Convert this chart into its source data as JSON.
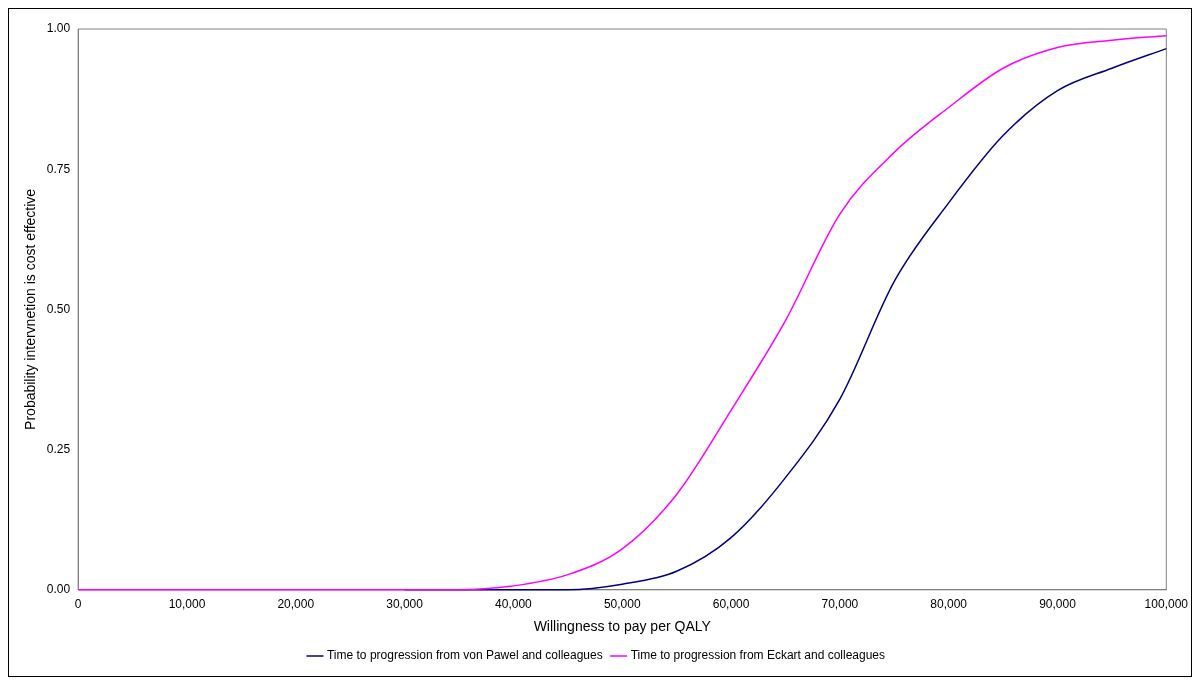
{
  "chart_data": {
    "type": "line",
    "xlabel": "Willingness to pay per QALY",
    "ylabel": "Probability intervnetion is cost effective",
    "xlim": [
      0,
      100000
    ],
    "xticks": [
      0,
      {
        "value": 10000,
        "label": "10,000"
      },
      {
        "value": 20000,
        "label": "20,000"
      },
      {
        "value": 30000,
        "label": "30,000"
      },
      {
        "value": 40000,
        "label": "40,000"
      },
      {
        "value": 50000,
        "label": "50,000"
      },
      {
        "value": 60000,
        "label": "60,000"
      },
      {
        "value": 70000,
        "label": "70,000"
      },
      {
        "value": 80000,
        "label": "80,000"
      },
      {
        "value": 90000,
        "label": "90,000"
      },
      {
        "value": 100000,
        "label": "100,000"
      }
    ],
    "ylim": [
      0,
      1
    ],
    "yticks": [
      {
        "value": 0,
        "label": "0.00"
      },
      {
        "value": 0.25,
        "label": "0.25"
      },
      {
        "value": 0.5,
        "label": "0.50"
      },
      {
        "value": 0.75,
        "label": "0.75"
      },
      {
        "value": 1,
        "label": "1.00"
      }
    ],
    "grid": false,
    "legend": "bottom",
    "marker": "none",
    "line_style": "solid",
    "series": [
      {
        "name": "Time to progression from von Pawel and colleagues",
        "color": "#000080",
        "x": [
          30000,
          40000,
          45000,
          50000,
          55000,
          60000,
          65000,
          70000,
          75000,
          80000,
          85000,
          90000,
          95000,
          100000
        ],
        "values": [
          0,
          0,
          0,
          0.01,
          0.033,
          0.093,
          0.2,
          0.34,
          0.55,
          0.69,
          0.81,
          0.89,
          0.93,
          0.965
        ]
      },
      {
        "name": "Time to progression from Eckart and colleagues",
        "color": "#ff00ff",
        "x": [
          0,
          10000,
          20000,
          30000,
          35000,
          40000,
          45000,
          50000,
          55000,
          60000,
          65000,
          70000,
          75000,
          80000,
          85000,
          90000,
          95000,
          100000
        ],
        "values": [
          0,
          0,
          0,
          0,
          0,
          0.007,
          0.027,
          0.073,
          0.17,
          0.32,
          0.48,
          0.67,
          0.78,
          0.86,
          0.93,
          0.967,
          0.98,
          0.988
        ]
      }
    ]
  }
}
